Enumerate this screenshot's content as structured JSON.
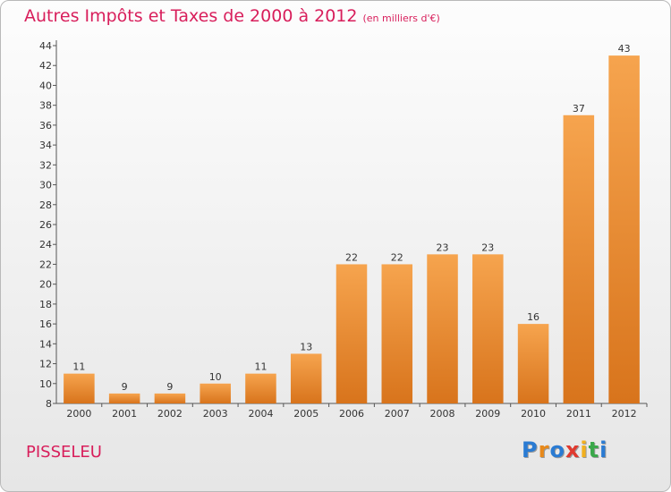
{
  "title": {
    "main": "Autres Impôts et Taxes de 2000 à 2012",
    "unit": "(en milliers d'€)"
  },
  "commune": "PISSELEU",
  "logo": {
    "letters": [
      "P",
      "r",
      "o",
      "x",
      "i",
      "t",
      "i"
    ],
    "colors": [
      "#2a7bd3",
      "#e8891a",
      "#2a7bd3",
      "#e03a2f",
      "#f2b01e",
      "#3aa84a",
      "#2a7bd3"
    ]
  },
  "colors": {
    "bar_top": "#f6a44e",
    "bar_bottom": "#d8741c",
    "axis": "#555555",
    "text": "#333333"
  },
  "chart_data": {
    "type": "bar",
    "categories": [
      "2000",
      "2001",
      "2002",
      "2003",
      "2004",
      "2005",
      "2006",
      "2007",
      "2008",
      "2009",
      "2010",
      "2011",
      "2012"
    ],
    "values": [
      11,
      9,
      9,
      10,
      11,
      13,
      22,
      22,
      23,
      23,
      16,
      37,
      43
    ],
    "ylim": [
      8,
      44
    ],
    "yticks": [
      8,
      10,
      12,
      14,
      16,
      18,
      20,
      22,
      24,
      26,
      28,
      30,
      32,
      34,
      36,
      38,
      40,
      42,
      44
    ],
    "grid": false,
    "data_labels": true
  }
}
